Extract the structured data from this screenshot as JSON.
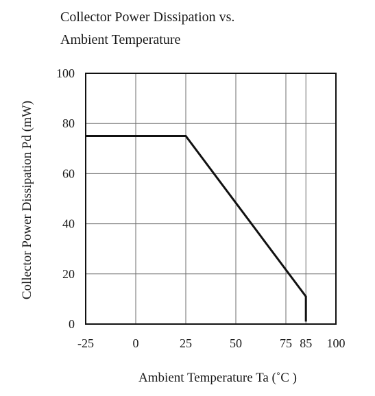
{
  "chart_data": {
    "type": "line",
    "title_lines": [
      "Collector Power Dissipation vs.",
      "Ambient Temperature"
    ],
    "xlabel": "Ambient Temperature Ta (˚C   )",
    "ylabel": "Collector Power Dissipation Pd (mW)",
    "xlim": [
      -25,
      100
    ],
    "ylim": [
      0,
      100
    ],
    "x_ticks": [
      -25,
      0,
      25,
      50,
      75,
      85,
      100
    ],
    "x_tick_labels": [
      "-25",
      "0",
      "25",
      "50",
      "75",
      "85",
      "100"
    ],
    "x_gridlines": [
      0,
      25,
      50,
      75,
      85
    ],
    "y_ticks": [
      0,
      20,
      40,
      60,
      80,
      100
    ],
    "y_tick_labels": [
      "0",
      "20",
      "40",
      "60",
      "80",
      "100"
    ],
    "grid": true,
    "series": [
      {
        "x": [
          -25,
          25,
          85,
          85
        ],
        "y": [
          75,
          75,
          11,
          1
        ],
        "color": "#111111"
      }
    ]
  }
}
